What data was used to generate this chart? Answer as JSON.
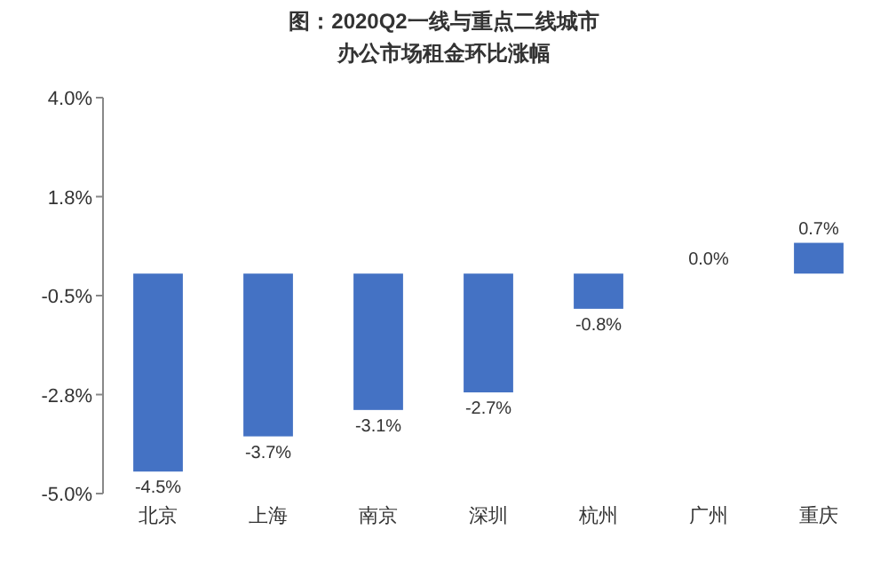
{
  "chart_data": {
    "type": "bar",
    "title": "图：2020Q2一线与重点二线城市",
    "subtitle": "办公市场租金环比涨幅",
    "categories": [
      "北京",
      "上海",
      "南京",
      "深圳",
      "杭州",
      "广州",
      "重庆"
    ],
    "values": [
      -4.5,
      -3.7,
      -3.1,
      -2.7,
      -0.8,
      0.0,
      0.7
    ],
    "value_labels": [
      "-4.5%",
      "-3.7%",
      "-3.1%",
      "-2.7%",
      "-0.8%",
      "0.0%",
      "0.7%"
    ],
    "color": "#4472c4",
    "ylim": [
      -5.0,
      4.0
    ],
    "yticks": [
      {
        "value": 4.0,
        "label": "4.0%"
      },
      {
        "value": 1.75,
        "label": "1.8%"
      },
      {
        "value": -0.5,
        "label": "-0.5%"
      },
      {
        "value": -2.75,
        "label": "-2.8%"
      },
      {
        "value": -5.0,
        "label": "-5.0%"
      }
    ],
    "grid": false
  }
}
